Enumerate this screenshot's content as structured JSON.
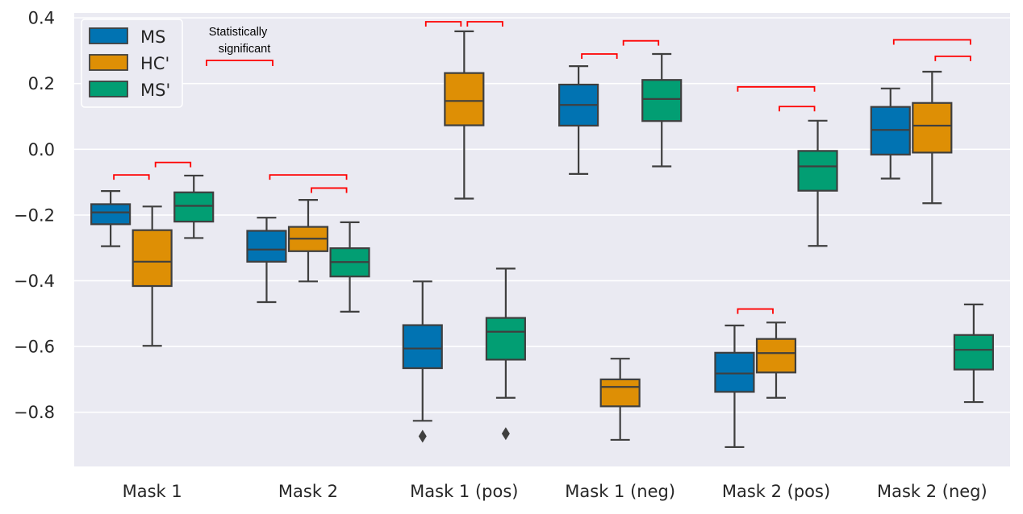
{
  "chart_data": {
    "type": "box",
    "categories": [
      "Mask 1",
      "Mask 2",
      "Mask 1 (pos)",
      "Mask 1 (neg)",
      "Mask 2 (pos)",
      "Mask 2 (neg)"
    ],
    "ylim": [
      -0.965,
      0.415
    ],
    "yticks": [
      0.4,
      0.2,
      0.0,
      -0.2,
      -0.4,
      -0.6,
      -0.8
    ],
    "ytick_labels": [
      "0.4",
      "0.2",
      "0.0",
      "−0.2",
      "−0.4",
      "−0.6",
      "−0.8"
    ],
    "grid": true,
    "legend_position": "top-left",
    "series": [
      {
        "name": "MS",
        "color": "#0173b2",
        "boxes": [
          {
            "category": "Mask 1",
            "whislo": -0.295,
            "q1": -0.228,
            "med": -0.192,
            "q3": -0.167,
            "whishi": -0.127
          },
          {
            "category": "Mask 2",
            "whislo": -0.465,
            "q1": -0.342,
            "med": -0.305,
            "q3": -0.248,
            "whishi": -0.208
          },
          {
            "category": "Mask 1 (pos)",
            "whislo": -0.826,
            "q1": -0.666,
            "med": -0.606,
            "q3": -0.535,
            "whishi": -0.402,
            "fliers": [
              -0.873
            ]
          },
          {
            "category": "Mask 1 (neg)",
            "whislo": -0.075,
            "q1": 0.072,
            "med": 0.135,
            "q3": 0.197,
            "whishi": 0.253
          },
          {
            "category": "Mask 2 (pos)",
            "whislo": -0.906,
            "q1": -0.738,
            "med": -0.682,
            "q3": -0.619,
            "whishi": -0.536
          },
          {
            "category": "Mask 2 (neg)",
            "whislo": -0.089,
            "q1": -0.016,
            "med": 0.059,
            "q3": 0.129,
            "whishi": 0.185
          }
        ]
      },
      {
        "name": "HC'",
        "color": "#de8f05",
        "boxes": [
          {
            "category": "Mask 1",
            "whislo": -0.598,
            "q1": -0.416,
            "med": -0.342,
            "q3": -0.246,
            "whishi": -0.174
          },
          {
            "category": "Mask 2",
            "whislo": -0.402,
            "q1": -0.31,
            "med": -0.272,
            "q3": -0.236,
            "whishi": -0.154
          },
          {
            "category": "Mask 1 (pos)",
            "whislo": -0.15,
            "q1": 0.073,
            "med": 0.147,
            "q3": 0.232,
            "whishi": 0.359
          },
          {
            "category": "Mask 1 (neg)",
            "whislo": -0.884,
            "q1": -0.782,
            "med": -0.723,
            "q3": -0.7,
            "whishi": -0.637
          },
          {
            "category": "Mask 2 (pos)",
            "whislo": -0.756,
            "q1": -0.679,
            "med": -0.62,
            "q3": -0.577,
            "whishi": -0.527
          },
          {
            "category": "Mask 2 (neg)",
            "whislo": -0.164,
            "q1": -0.01,
            "med": 0.072,
            "q3": 0.141,
            "whishi": 0.236
          }
        ]
      },
      {
        "name": "MS'",
        "color": "#029e73",
        "boxes": [
          {
            "category": "Mask 1",
            "whislo": -0.27,
            "q1": -0.22,
            "med": -0.172,
            "q3": -0.131,
            "whishi": -0.08
          },
          {
            "category": "Mask 2",
            "whislo": -0.494,
            "q1": -0.387,
            "med": -0.343,
            "q3": -0.301,
            "whishi": -0.222
          },
          {
            "category": "Mask 1 (pos)",
            "whislo": -0.756,
            "q1": -0.64,
            "med": -0.555,
            "q3": -0.513,
            "whishi": -0.363,
            "fliers": [
              -0.865
            ]
          },
          {
            "category": "Mask 1 (neg)",
            "whislo": -0.052,
            "q1": 0.086,
            "med": 0.153,
            "q3": 0.211,
            "whishi": 0.29
          },
          {
            "category": "Mask 2 (pos)",
            "whislo": -0.294,
            "q1": -0.126,
            "med": -0.052,
            "q3": -0.005,
            "whishi": 0.087
          },
          {
            "category": "Mask 2 (neg)",
            "whislo": -0.769,
            "q1": -0.67,
            "med": -0.61,
            "q3": -0.565,
            "whishi": -0.472
          }
        ]
      }
    ],
    "significance_brackets": [
      {
        "category": "Mask 1",
        "pair": [
          "MS",
          "HC'"
        ],
        "y": -0.078
      },
      {
        "category": "Mask 1",
        "pair": [
          "HC'",
          "MS'"
        ],
        "y": -0.04
      },
      {
        "category": "Mask 2",
        "pair": [
          "MS",
          "MS'"
        ],
        "y": -0.078
      },
      {
        "category": "Mask 2",
        "pair": [
          "HC'",
          "MS'"
        ],
        "y": -0.118
      },
      {
        "category": "Mask 1 (pos)",
        "pair": [
          "MS",
          "HC'"
        ],
        "y": 0.388
      },
      {
        "category": "Mask 1 (pos)",
        "pair": [
          "HC'",
          "MS'"
        ],
        "y": 0.388
      },
      {
        "category": "Mask 1 (neg)",
        "pair": [
          "MS",
          "HC'"
        ],
        "y": 0.29
      },
      {
        "category": "Mask 1 (neg)",
        "pair": [
          "HC'",
          "MS'"
        ],
        "y": 0.33
      },
      {
        "category": "Mask 2 (pos)",
        "pair": [
          "MS",
          "MS'"
        ],
        "y": 0.19
      },
      {
        "category": "Mask 2 (pos)",
        "pair": [
          "HC'",
          "MS'"
        ],
        "y": 0.13
      },
      {
        "category": "Mask 2 (pos)",
        "pair": [
          "MS",
          "HC'"
        ],
        "y": -0.486
      },
      {
        "category": "Mask 2 (neg)",
        "pair": [
          "MS",
          "MS'"
        ],
        "y": 0.333
      },
      {
        "category": "Mask 2 (neg)",
        "pair": [
          "HC'",
          "MS'"
        ],
        "y": 0.283
      }
    ],
    "annotation": {
      "line1": "Statistically",
      "line2": "significant",
      "color": "#ff0000"
    },
    "colors": {
      "background": "#eaeaf2",
      "grid": "#ffffff",
      "box_edge": "#3f3f3f",
      "bracket": "#ff0000"
    }
  }
}
